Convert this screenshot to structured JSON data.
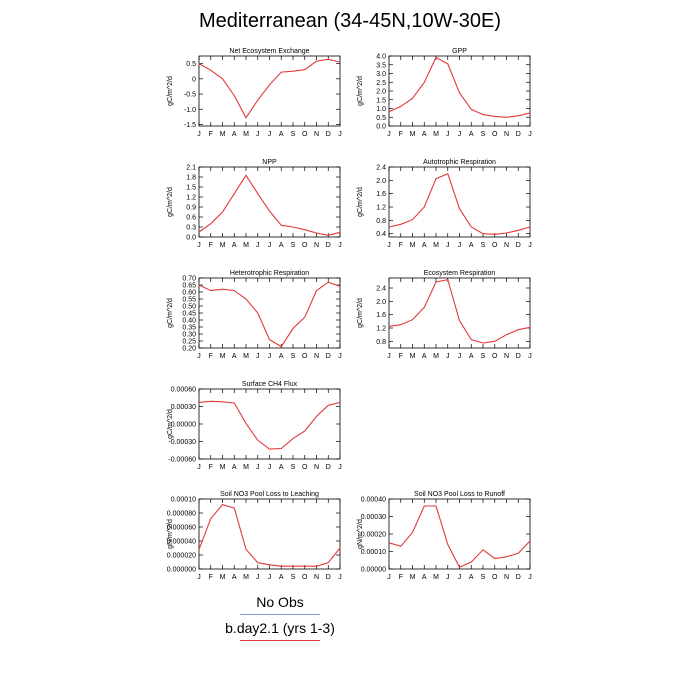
{
  "title": "Mediterranean (34-45N,10W-30E)",
  "months": [
    "J",
    "F",
    "M",
    "A",
    "M",
    "J",
    "J",
    "A",
    "S",
    "O",
    "N",
    "D",
    "J"
  ],
  "legend": {
    "obs_label": "No Obs",
    "model_label": "b.day2.1 (yrs 1-3)",
    "obs_color": "#7b9ad6",
    "model_color": "#e0393b"
  },
  "chart_data": [
    {
      "type": "line",
      "title": "Net Ecosystem Exchange",
      "ylabel": "gC/m^2/d",
      "ylim": [
        -1.55,
        0.75
      ],
      "yticks": [
        -1.5,
        -1.0,
        -0.5,
        0.0,
        0.5
      ],
      "ytick_labels": [
        "-1.5",
        "-1.0",
        "-0.5",
        "0",
        "0.5"
      ],
      "series": [
        {
          "color": "#e0393b",
          "values": [
            0.5,
            0.28,
            0.0,
            -0.55,
            -1.28,
            -0.7,
            -0.2,
            0.22,
            0.25,
            0.3,
            0.58,
            0.64,
            0.55
          ]
        }
      ]
    },
    {
      "type": "line",
      "title": "GPP",
      "ylabel": "gC/m^2/d",
      "ylim": [
        0.0,
        4.0
      ],
      "yticks": [
        0.0,
        0.5,
        1.0,
        1.5,
        2.0,
        2.5,
        3.0,
        3.5,
        4.0
      ],
      "ytick_labels": [
        "0.0",
        "0.5",
        "1.0",
        "1.5",
        "2.0",
        "2.5",
        "3.0",
        "3.5",
        "4.0"
      ],
      "series": [
        {
          "color": "#e0393b",
          "values": [
            0.82,
            1.12,
            1.58,
            2.5,
            3.92,
            3.55,
            1.9,
            0.95,
            0.65,
            0.55,
            0.5,
            0.58,
            0.75
          ]
        }
      ]
    },
    {
      "type": "line",
      "title": "NPP",
      "ylabel": "gC/m^2/d",
      "ylim": [
        0.0,
        2.1
      ],
      "yticks": [
        0.0,
        0.3,
        0.6,
        0.9,
        1.2,
        1.5,
        1.8,
        2.1
      ],
      "ytick_labels": [
        "0.0",
        "0.3",
        "0.6",
        "0.9",
        "1.2",
        "1.5",
        "1.8",
        "2.1"
      ],
      "series": [
        {
          "color": "#e0393b",
          "values": [
            0.15,
            0.4,
            0.75,
            1.3,
            1.85,
            1.3,
            0.78,
            0.35,
            0.3,
            0.22,
            0.12,
            0.05,
            0.14
          ]
        }
      ]
    },
    {
      "type": "line",
      "title": "Autotrophic Respiration",
      "ylabel": "gC/m^2/d",
      "ylim": [
        0.3,
        2.4
      ],
      "yticks": [
        0.4,
        0.8,
        1.2,
        1.6,
        2.0,
        2.4
      ],
      "ytick_labels": [
        "0.4",
        "0.8",
        "1.2",
        "1.6",
        "2.0",
        "2.4"
      ],
      "series": [
        {
          "color": "#e0393b",
          "values": [
            0.6,
            0.68,
            0.82,
            1.2,
            2.05,
            2.2,
            1.15,
            0.6,
            0.4,
            0.38,
            0.42,
            0.5,
            0.6
          ]
        }
      ]
    },
    {
      "type": "line",
      "title": "Heterotrophic Respiration",
      "ylabel": "gC/m^2/d",
      "ylim": [
        0.2,
        0.7
      ],
      "yticks": [
        0.2,
        0.25,
        0.3,
        0.35,
        0.4,
        0.45,
        0.5,
        0.55,
        0.6,
        0.65,
        0.7
      ],
      "ytick_labels": [
        "0.20",
        "0.25",
        "0.30",
        "0.35",
        "0.40",
        "0.45",
        "0.50",
        "0.55",
        "0.60",
        "0.65",
        "0.70"
      ],
      "series": [
        {
          "color": "#e0393b",
          "values": [
            0.65,
            0.61,
            0.62,
            0.61,
            0.55,
            0.45,
            0.26,
            0.21,
            0.34,
            0.42,
            0.61,
            0.67,
            0.64
          ]
        }
      ]
    },
    {
      "type": "line",
      "title": "Ecosystem Respiration",
      "ylabel": "gC/m^2/d",
      "ylim": [
        0.6,
        2.7
      ],
      "yticks": [
        0.8,
        1.2,
        1.6,
        2.0,
        2.4
      ],
      "ytick_labels": [
        "0.8",
        "1.2",
        "1.6",
        "2.0",
        "2.4"
      ],
      "series": [
        {
          "color": "#e0393b",
          "values": [
            1.25,
            1.3,
            1.45,
            1.82,
            2.58,
            2.65,
            1.42,
            0.85,
            0.75,
            0.8,
            1.0,
            1.15,
            1.22
          ]
        }
      ]
    },
    {
      "type": "line",
      "title": "Surface CH4 Flux",
      "ylabel": "gC/m^2/d",
      "ylim": [
        -0.0006,
        0.0006
      ],
      "yticks": [
        -0.0006,
        -0.0003,
        0.0,
        0.0003,
        0.0006
      ],
      "ytick_labels": [
        "-0.00060",
        "-0.00030",
        "0.00000",
        "0.00030",
        "0.00060"
      ],
      "series": [
        {
          "color": "#e0393b",
          "values": [
            0.00037,
            0.00039,
            0.00038,
            0.00036,
            1e-05,
            -0.00028,
            -0.00043,
            -0.00042,
            -0.00025,
            -0.00012,
            0.00013,
            0.00032,
            0.00037
          ]
        }
      ]
    },
    {
      "type": "line",
      "title": "Soil NO3 Pool Loss to Leaching",
      "ylabel": "gN/m^2/d",
      "ylim": [
        0.0,
        0.0001
      ],
      "yticks": [
        0.0,
        2e-05,
        4e-05,
        6e-05,
        8e-05,
        0.0001
      ],
      "ytick_labels": [
        "0.000000",
        "0.000020",
        "0.000040",
        "0.000060",
        "0.000080",
        "0.00010"
      ],
      "series": [
        {
          "color": "#e0393b",
          "values": [
            2.8e-05,
            7.2e-05,
            9.2e-05,
            8.7e-05,
            2.8e-05,
            9e-06,
            6e-06,
            4e-06,
            4e-06,
            4e-06,
            4e-06,
            9e-06,
            3e-05
          ]
        }
      ]
    },
    {
      "type": "line",
      "title": "Soil NO3 Pool Loss to Runoff",
      "ylabel": "gN/m^2/d",
      "ylim": [
        0.0,
        0.0004
      ],
      "yticks": [
        0.0,
        0.0001,
        0.0002,
        0.0003,
        0.0004
      ],
      "ytick_labels": [
        "0.00000",
        "0.00010",
        "0.00020",
        "0.00030",
        "0.00040"
      ],
      "series": [
        {
          "color": "#e0393b",
          "values": [
            0.00015,
            0.00013,
            0.00021,
            0.00036,
            0.00036,
            0.00014,
            1e-05,
            4e-05,
            0.00011,
            6e-05,
            7e-05,
            9e-05,
            0.00016
          ]
        }
      ]
    }
  ]
}
